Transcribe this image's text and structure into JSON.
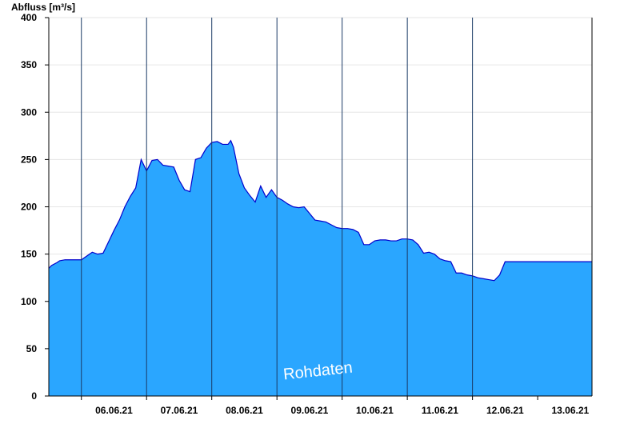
{
  "chart_data": {
    "type": "area",
    "ylabel": "Abfluss [m³/s]",
    "ylim": [
      0,
      400
    ],
    "yticks": [
      0,
      50,
      100,
      150,
      200,
      250,
      300,
      350,
      400
    ],
    "xlim": [
      "05.06.21 12:00",
      "13.06.21 20:00"
    ],
    "xtick_labels": [
      "06.06.21",
      "07.06.21",
      "08.06.21",
      "09.06.21",
      "10.06.21",
      "11.06.21",
      "12.06.21",
      "13.06.21"
    ],
    "day_separators": [
      "06.06.21 24:00",
      "07.06.21 24:00",
      "08.06.21 24:00",
      "09.06.21 24:00",
      "10.06.21 24:00",
      "11.06.21 24:00",
      "12.06.21 24:00"
    ],
    "grid": "horizontal",
    "fill_color": "#2aa6ff",
    "line_color": "#0000cc",
    "annotation": "Rohdaten",
    "x_unit": "hours since 05.06.21 12:00",
    "x": [
      0,
      1,
      3,
      4,
      6,
      9,
      12,
      15,
      16,
      18,
      20,
      22,
      24,
      26,
      28,
      30,
      32,
      34,
      36,
      38,
      40,
      42,
      44,
      46,
      48,
      50,
      52,
      54,
      56,
      58,
      60,
      62,
      64,
      66,
      67,
      68,
      70,
      72,
      74,
      76,
      78,
      80,
      82,
      84,
      86,
      88,
      90,
      92,
      94,
      96,
      98,
      100,
      102,
      104,
      106,
      108,
      110,
      112,
      114,
      116,
      118,
      120,
      122,
      124,
      126,
      128,
      130,
      132,
      134,
      136,
      138,
      140,
      142,
      144,
      146,
      148,
      150,
      152,
      154,
      156,
      158,
      160,
      162,
      164,
      166,
      168,
      170,
      172,
      174,
      176,
      178,
      180,
      182,
      184,
      186,
      188,
      190,
      192,
      194,
      196,
      198,
      200
    ],
    "y": [
      135,
      138,
      141,
      143,
      144,
      144,
      144,
      150,
      152,
      150,
      151,
      163,
      175,
      186,
      200,
      211,
      220,
      250,
      238,
      249,
      250,
      244,
      243,
      242,
      228,
      218,
      216,
      250,
      252,
      262,
      268,
      269,
      266,
      266,
      270,
      263,
      235,
      220,
      212,
      205,
      222,
      210,
      218,
      210,
      207,
      203,
      200,
      199,
      200,
      193,
      186,
      185,
      184,
      181,
      178,
      177,
      177,
      176,
      173,
      160,
      160,
      164,
      165,
      165,
      164,
      164,
      166,
      166,
      165,
      160,
      151,
      152,
      150,
      145,
      143,
      142,
      130,
      130,
      128,
      127,
      125,
      124,
      123,
      122,
      128,
      142,
      142,
      142,
      142,
      142,
      142,
      142,
      142,
      142,
      142,
      142,
      142,
      142,
      142,
      142,
      142,
      142
    ]
  }
}
